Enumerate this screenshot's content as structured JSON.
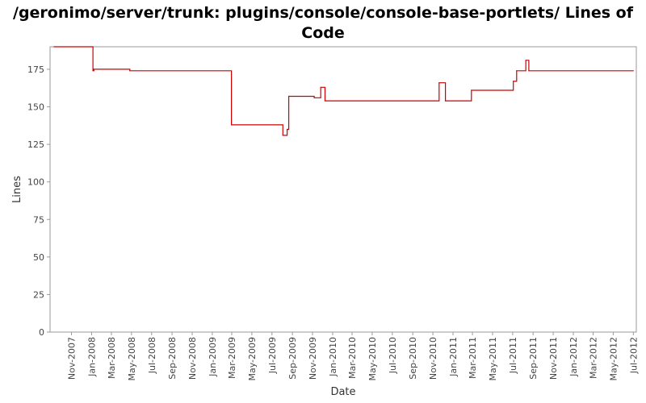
{
  "chart_data": {
    "type": "line",
    "title": "/geronimo/server/trunk: plugins/console/console-base-portlets/ Lines of Code",
    "xlabel": "Date",
    "ylabel": "Lines",
    "ylim": [
      0,
      190
    ],
    "yticks": [
      0,
      25,
      50,
      75,
      100,
      125,
      150,
      175
    ],
    "xlim": [
      "2007-08-28",
      "2012-07-10"
    ],
    "xticks": [
      {
        "label": "Nov-2007",
        "date": "2007-11-01"
      },
      {
        "label": "Jan-2008",
        "date": "2008-01-01"
      },
      {
        "label": "Mar-2008",
        "date": "2008-03-01"
      },
      {
        "label": "May-2008",
        "date": "2008-05-01"
      },
      {
        "label": "Jul-2008",
        "date": "2008-07-01"
      },
      {
        "label": "Sep-2008",
        "date": "2008-09-01"
      },
      {
        "label": "Nov-2008",
        "date": "2008-11-01"
      },
      {
        "label": "Jan-2009",
        "date": "2009-01-01"
      },
      {
        "label": "Mar-2009",
        "date": "2009-03-01"
      },
      {
        "label": "May-2009",
        "date": "2009-05-01"
      },
      {
        "label": "Jul-2009",
        "date": "2009-07-01"
      },
      {
        "label": "Sep-2009",
        "date": "2009-09-01"
      },
      {
        "label": "Nov-2009",
        "date": "2009-11-01"
      },
      {
        "label": "Jan-2010",
        "date": "2010-01-01"
      },
      {
        "label": "Mar-2010",
        "date": "2010-03-01"
      },
      {
        "label": "May-2010",
        "date": "2010-05-01"
      },
      {
        "label": "Jul-2010",
        "date": "2010-07-01"
      },
      {
        "label": "Sep-2010",
        "date": "2010-09-01"
      },
      {
        "label": "Nov-2010",
        "date": "2010-11-01"
      },
      {
        "label": "Jan-2011",
        "date": "2011-01-01"
      },
      {
        "label": "Mar-2011",
        "date": "2011-03-01"
      },
      {
        "label": "May-2011",
        "date": "2011-05-01"
      },
      {
        "label": "Jul-2011",
        "date": "2011-07-01"
      },
      {
        "label": "Sep-2011",
        "date": "2011-09-01"
      },
      {
        "label": "Nov-2011",
        "date": "2011-11-01"
      },
      {
        "label": "Jan-2012",
        "date": "2012-01-01"
      },
      {
        "label": "Mar-2012",
        "date": "2012-03-01"
      },
      {
        "label": "May-2012",
        "date": "2012-05-01"
      },
      {
        "label": "Jul-2012",
        "date": "2012-07-01"
      }
    ],
    "grid": false,
    "legend": "none",
    "line_color": "#cc0000",
    "step": true,
    "series": [
      {
        "points": [
          {
            "x": "2007-09-09",
            "y": 190
          },
          {
            "x": "2008-01-05",
            "y": 174
          },
          {
            "x": "2008-01-08",
            "y": 175
          },
          {
            "x": "2008-04-26",
            "y": 174
          },
          {
            "x": "2009-02-28",
            "y": 138
          },
          {
            "x": "2009-08-03",
            "y": 131
          },
          {
            "x": "2009-08-16",
            "y": 135
          },
          {
            "x": "2009-08-21",
            "y": 157
          },
          {
            "x": "2009-11-06",
            "y": 156
          },
          {
            "x": "2009-11-26",
            "y": 163
          },
          {
            "x": "2009-12-09",
            "y": 154
          },
          {
            "x": "2010-11-20",
            "y": 166
          },
          {
            "x": "2010-12-09",
            "y": 154
          },
          {
            "x": "2011-02-26",
            "y": 161
          },
          {
            "x": "2011-07-03",
            "y": 167
          },
          {
            "x": "2011-07-13",
            "y": 174
          },
          {
            "x": "2011-08-10",
            "y": 181
          },
          {
            "x": "2011-08-19",
            "y": 174
          },
          {
            "x": "2012-07-01",
            "y": 174
          }
        ]
      }
    ]
  }
}
